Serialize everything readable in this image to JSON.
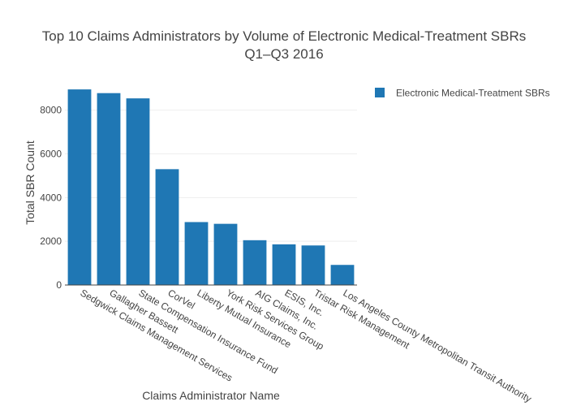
{
  "chart_data": {
    "type": "bar",
    "title_lines": [
      "Top 10 Claims Administrators by Volume of Electronic Medical-Treatment SBRs",
      "Q1–Q3 2016"
    ],
    "xlabel": "Claims Administrator Name",
    "ylabel": "Total SBR Count",
    "ylim": [
      0,
      9400
    ],
    "yticks": [
      0,
      2000,
      4000,
      6000,
      8000
    ],
    "ytick_labels": [
      "0",
      "2000",
      "4000",
      "6000",
      "8000"
    ],
    "grid": true,
    "legend_position": "top-right",
    "categories": [
      "Sedgwick Claims Management Services",
      "Gallagher Bassett",
      "State Compensation Insurance Fund",
      "CorVel",
      "Liberty Mutual Insurance",
      "York Risk Services Group",
      "AIG Claims, Inc.",
      "ESIS, Inc.",
      "Tristar Risk Management",
      "Los Angeles County Metropolitan Transit Authority"
    ],
    "series": [
      {
        "name": "Electronic Medical-Treatment SBRs",
        "color": "#1f77b4",
        "values": [
          8950,
          8780,
          8540,
          5300,
          2880,
          2800,
          2050,
          1860,
          1810,
          920
        ]
      }
    ]
  }
}
